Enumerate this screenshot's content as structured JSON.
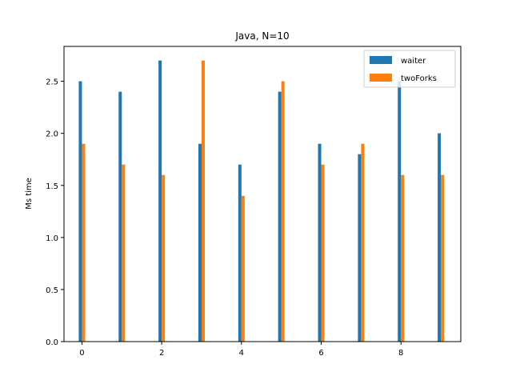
{
  "chart_data": {
    "type": "bar",
    "title": "Java, N=10",
    "xlabel": "",
    "ylabel": "Ms time",
    "x": [
      0,
      1,
      2,
      3,
      4,
      5,
      6,
      7,
      8,
      9
    ],
    "x_ticks": [
      0,
      2,
      4,
      6,
      8
    ],
    "xlim": [
      -0.45,
      9.5
    ],
    "ylim": [
      0,
      2.835
    ],
    "y_ticks": [
      0.0,
      0.5,
      1.0,
      1.5,
      2.0,
      2.5
    ],
    "y_tick_labels": [
      "0.0",
      "0.5",
      "1.0",
      "1.5",
      "2.0",
      "2.5"
    ],
    "series": [
      {
        "name": "waiter",
        "color": "#1f77b4",
        "values": [
          2.5,
          2.4,
          2.7,
          1.9,
          1.7,
          2.4,
          1.9,
          1.8,
          2.5,
          2.0
        ]
      },
      {
        "name": "twoForks",
        "color": "#ff7f0e",
        "values": [
          1.9,
          1.7,
          1.6,
          2.7,
          1.4,
          2.5,
          1.7,
          1.9,
          1.6,
          1.6
        ]
      }
    ],
    "legend_position": "top-right",
    "grid": false
  }
}
